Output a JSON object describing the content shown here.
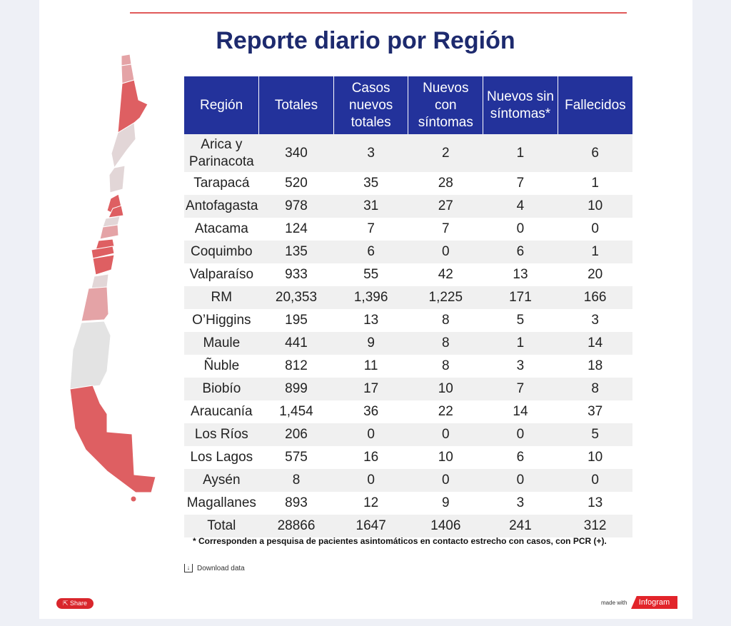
{
  "title": "Reporte diario por Región",
  "table": {
    "headers": [
      "Región",
      "Totales",
      "Casos nuevos totales",
      "Nuevos con síntomas",
      "Nuevos sin síntomas*",
      "Fallecidos"
    ],
    "rows": [
      [
        "Arica y Parinacota",
        "340",
        "3",
        "2",
        "1",
        "6"
      ],
      [
        "Tarapacá",
        "520",
        "35",
        "28",
        "7",
        "1"
      ],
      [
        "Antofagasta",
        "978",
        "31",
        "27",
        "4",
        "10"
      ],
      [
        "Atacama",
        "124",
        "7",
        "7",
        "0",
        "0"
      ],
      [
        "Coquimbo",
        "135",
        "6",
        "0",
        "6",
        "1"
      ],
      [
        "Valparaíso",
        "933",
        "55",
        "42",
        "13",
        "20"
      ],
      [
        "RM",
        "20,353",
        "1,396",
        "1,225",
        "171",
        "166"
      ],
      [
        "O’Higgins",
        "195",
        "13",
        "8",
        "5",
        "3"
      ],
      [
        "Maule",
        "441",
        "9",
        "8",
        "1",
        "14"
      ],
      [
        "Ñuble",
        "812",
        "11",
        "8",
        "3",
        "18"
      ],
      [
        "Biobío",
        "899",
        "17",
        "10",
        "7",
        "8"
      ],
      [
        "Araucanía",
        "1,454",
        "36",
        "22",
        "14",
        "37"
      ],
      [
        "Los Ríos",
        "206",
        "0",
        "0",
        "0",
        "5"
      ],
      [
        "Los Lagos",
        "575",
        "16",
        "10",
        "6",
        "10"
      ],
      [
        "Aysén",
        "8",
        "0",
        "0",
        "0",
        "0"
      ],
      [
        "Magallanes",
        "893",
        "12",
        "9",
        "3",
        "13"
      ],
      [
        "Total",
        "28866",
        "1647",
        "1406",
        "241",
        "312"
      ]
    ]
  },
  "footnote": "* Corresponden a pesquisa de pacientes asintomáticos en contacto estrecho con casos, con PCR (+).",
  "download_label": "Download data",
  "share_label": "Share",
  "made_with": "made with",
  "brand": "Infogram",
  "colors": {
    "header": "#23329b",
    "title": "#1d2a6e",
    "high": "#de5f62",
    "mid": "#e4a3a6",
    "low": "#e2d6d7",
    "none": "#e3e3e3"
  }
}
